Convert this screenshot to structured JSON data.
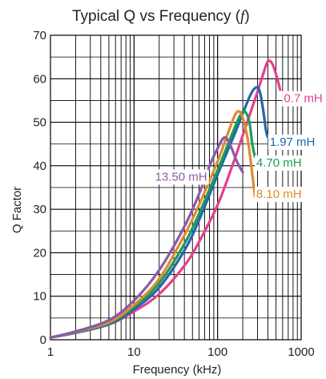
{
  "chart_data": {
    "type": "line",
    "title": "Typical Q vs Frequency",
    "title_symbol": "f",
    "xlabel": "Frequency (kHz)",
    "ylabel": "Q Factor",
    "x_scale": "log",
    "xlim": [
      1,
      1000
    ],
    "ylim": [
      0,
      70
    ],
    "x_ticks": [
      "1",
      "10",
      "100",
      "1000"
    ],
    "y_ticks": [
      "0",
      "10",
      "20",
      "30",
      "40",
      "50",
      "60",
      "70"
    ],
    "grid": true,
    "series": [
      {
        "name": "0.7 mH",
        "color": "#e83e8c",
        "points": [
          [
            1,
            0.5
          ],
          [
            2,
            1.6
          ],
          [
            5,
            3.5
          ],
          [
            10,
            6.5
          ],
          [
            20,
            10.5
          ],
          [
            40,
            17
          ],
          [
            60,
            22.5
          ],
          [
            100,
            31
          ],
          [
            150,
            40
          ],
          [
            200,
            47
          ],
          [
            250,
            52.5
          ],
          [
            300,
            57
          ],
          [
            350,
            61
          ],
          [
            400,
            64
          ],
          [
            450,
            63.5
          ],
          [
            500,
            61
          ],
          [
            560,
            57.5
          ]
        ]
      },
      {
        "name": "1.97 mH",
        "color": "#2166ac",
        "points": [
          [
            1,
            0.5
          ],
          [
            2,
            1.6
          ],
          [
            5,
            3.6
          ],
          [
            10,
            7
          ],
          [
            20,
            12
          ],
          [
            40,
            20.5
          ],
          [
            60,
            27.5
          ],
          [
            100,
            38
          ],
          [
            150,
            46
          ],
          [
            200,
            52
          ],
          [
            250,
            56.5
          ],
          [
            290,
            58
          ],
          [
            320,
            57
          ],
          [
            350,
            53
          ],
          [
            380,
            48
          ],
          [
            400,
            46.5
          ]
        ]
      },
      {
        "name": "4.70 mH",
        "color": "#1f9a5a",
        "points": [
          [
            1,
            0.5
          ],
          [
            2,
            1.7
          ],
          [
            5,
            3.8
          ],
          [
            10,
            7.5
          ],
          [
            20,
            13
          ],
          [
            40,
            22
          ],
          [
            60,
            29
          ],
          [
            100,
            39
          ],
          [
            140,
            46
          ],
          [
            180,
            51
          ],
          [
            210,
            52.5
          ],
          [
            240,
            50
          ],
          [
            260,
            45
          ],
          [
            280,
            42
          ]
        ]
      },
      {
        "name": "8.10 mH",
        "color": "#e08a2e",
        "points": [
          [
            1,
            0.5
          ],
          [
            2,
            1.8
          ],
          [
            5,
            4
          ],
          [
            10,
            8
          ],
          [
            20,
            14
          ],
          [
            40,
            24
          ],
          [
            60,
            31
          ],
          [
            100,
            41
          ],
          [
            130,
            47
          ],
          [
            160,
            51.5
          ],
          [
            180,
            52.5
          ],
          [
            200,
            51
          ],
          [
            230,
            46
          ],
          [
            260,
            38
          ],
          [
            280,
            33
          ]
        ]
      },
      {
        "name": "13.50 mH",
        "color": "#8a5aa8",
        "points": [
          [
            1,
            0.5
          ],
          [
            2,
            1.9
          ],
          [
            5,
            4.5
          ],
          [
            10,
            9
          ],
          [
            20,
            16
          ],
          [
            40,
            26
          ],
          [
            60,
            33.5
          ],
          [
            80,
            40
          ],
          [
            100,
            44
          ],
          [
            120,
            46.5
          ],
          [
            140,
            45
          ],
          [
            170,
            41
          ],
          [
            200,
            38.5
          ]
        ]
      }
    ]
  }
}
